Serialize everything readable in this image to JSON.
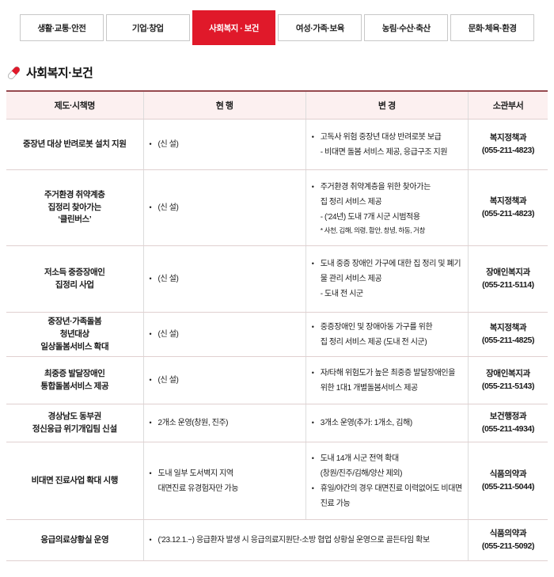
{
  "colors": {
    "accent_red": "#e0192a",
    "table_top_border": "#96494f",
    "header_bg": "#fcf0f0"
  },
  "nav": {
    "tabs": [
      {
        "label": "생활·교통·안전",
        "active": false
      },
      {
        "label": "기업·창업",
        "active": false
      },
      {
        "label": "사회복지 · 보건",
        "active": true
      },
      {
        "label": "여성·가족·보육",
        "active": false
      },
      {
        "label": "농림·수산·축산",
        "active": false
      },
      {
        "label": "문화·체육·환경",
        "active": false
      }
    ]
  },
  "section": {
    "title": "사회복지·보건",
    "icon": "pill-icon"
  },
  "table": {
    "headers": [
      "제도·시책명",
      "현 행",
      "변 경",
      "소관부서"
    ],
    "rows": [
      {
        "name": "중장년 대상 반려로봇 설치 지원",
        "current": [
          {
            "t": "bullet",
            "text": "(신 설)"
          }
        ],
        "change": [
          {
            "t": "bullet",
            "text": "고독사 위험 중장년 대상 반려로봇 보급"
          },
          {
            "t": "sub",
            "text": "- 비대면 돌봄 서비스 제공, 응급구조 지원"
          }
        ],
        "dept": "복지정책과\n(055-211-4823)"
      },
      {
        "name": "주거환경 취약계층\n집정리 찾아가는\n‘클린버스’",
        "current": [
          {
            "t": "bullet",
            "text": "(신 설)"
          }
        ],
        "change": [
          {
            "t": "bullet",
            "text": "주거환경 취약계층을 위한 찾아가는\n집 정리 서비스 제공"
          },
          {
            "t": "sub",
            "text": "- (’24년) 도내 7개 시군 시범적용"
          },
          {
            "t": "note",
            "text": "* 사천, 김해, 의령, 함안, 창녕, 하동, 거창"
          }
        ],
        "dept": "복지정책과\n(055-211-4823)"
      },
      {
        "name": "저소득 중증장애인\n집정리 사업",
        "current": [
          {
            "t": "bullet",
            "text": "(신 설)"
          }
        ],
        "change": [
          {
            "t": "bullet",
            "text": "도내 중증 장애인 가구에 대한 집 정리 및 폐기\n물 관리 서비스 제공"
          },
          {
            "t": "sub",
            "text": "- 도내 전 시군"
          }
        ],
        "dept": "장애인복지과\n(055-211-5114)"
      },
      {
        "name": "중장년·가족돌봄\n청년대상\n일상돌봄서비스 확대",
        "current": [
          {
            "t": "bullet",
            "text": "(신 설)"
          }
        ],
        "change": [
          {
            "t": "bullet",
            "text": "중증장애인 및 장애아동 가구를 위한\n집 정리 서비스 제공 (도내 전 시군)"
          }
        ],
        "dept": "복지정책과\n(055-211-4825)"
      },
      {
        "name": "최중증 발달장애인\n통합돌봄서비스 제공",
        "current": [
          {
            "t": "bullet",
            "text": "(신 설)"
          }
        ],
        "change": [
          {
            "t": "bullet",
            "text": "자/타해 위험도가 높은 최중증 발달장애인을\n위한 1대1 개별돌봄서비스 제공"
          }
        ],
        "dept": "장애인복지과\n(055-211-5143)"
      },
      {
        "name": "경상남도 동부권\n정신응급 위기개입팀 신설",
        "current": [
          {
            "t": "bullet",
            "text": "2개소 운영(창원, 진주)"
          }
        ],
        "change": [
          {
            "t": "bullet",
            "text": "3개소 운영(추가: 1개소, 김해)"
          }
        ],
        "dept": "보건행정과\n(055-211-4934)"
      },
      {
        "name": "비대면 진료사업 확대 시행",
        "current": [
          {
            "t": "bullet",
            "text": "도내 일부 도서벽지 지역\n대면진료 유경험자만 가능"
          }
        ],
        "change": [
          {
            "t": "bullet",
            "text": "도내 14개 시군 전역 확대\n(창원/진주/김해/양산 제외)"
          },
          {
            "t": "bullet",
            "text": "휴일/야간의 경우 대면진료 이력없어도 비대면\n진료 가능"
          }
        ],
        "dept": "식품의약과\n(055-211-5044)"
      },
      {
        "name": "응급의료상황실 운영",
        "merged": [
          {
            "t": "bullet",
            "text": "(’23.12.1.~) 응급환자 발생 시 응급의료지원단-소방 협업 상황실 운영으로 골든타임 확보"
          }
        ],
        "dept": "식품의약과\n(055-211-5092)"
      }
    ]
  }
}
